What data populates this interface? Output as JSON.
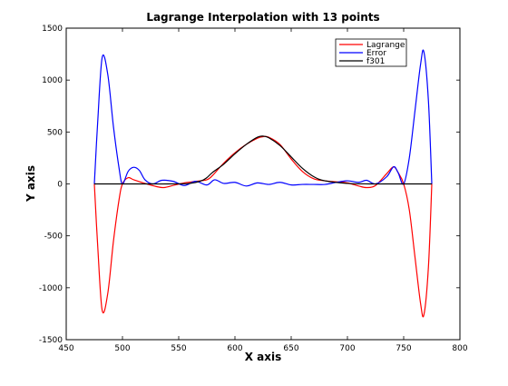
{
  "chart_data": {
    "type": "line",
    "title": "Lagrange Interpolation with 13 points",
    "xlabel": "X axis",
    "ylabel": "Y axis",
    "xlim": [
      450,
      800
    ],
    "ylim": [
      -1500,
      1500
    ],
    "xticks": [
      450,
      500,
      550,
      600,
      650,
      700,
      750,
      800
    ],
    "yticks": [
      -1500,
      -1000,
      -500,
      0,
      500,
      1000,
      1500
    ],
    "legend_position": "top-right",
    "grid": false,
    "series": [
      {
        "name": "Lagrange",
        "color": "#ff0000",
        "x": [
          475,
          478,
          482,
          487,
          492,
          497,
          500,
          505,
          510,
          520,
          530,
          537,
          545,
          555,
          565,
          575,
          580,
          590,
          600,
          610,
          620,
          625,
          630,
          640,
          650,
          660,
          670,
          680,
          690,
          700,
          710,
          717,
          725,
          735,
          741,
          745,
          750,
          755,
          760,
          765,
          768,
          772,
          775
        ],
        "y": [
          0,
          -600,
          -1220,
          -1050,
          -550,
          -150,
          0,
          60,
          40,
          5,
          -25,
          -35,
          -15,
          10,
          25,
          40,
          80,
          200,
          300,
          380,
          440,
          455,
          450,
          380,
          240,
          120,
          50,
          30,
          20,
          10,
          -20,
          -35,
          -15,
          100,
          165,
          110,
          0,
          -250,
          -700,
          -1150,
          -1260,
          -800,
          0
        ]
      },
      {
        "name": "Error",
        "color": "#0000ff",
        "x": [
          475,
          478,
          482,
          487,
          492,
          497,
          500,
          505,
          510,
          515,
          520,
          527,
          535,
          545,
          555,
          565,
          575,
          582,
          590,
          600,
          610,
          620,
          630,
          640,
          650,
          660,
          670,
          680,
          690,
          700,
          710,
          717,
          725,
          735,
          741,
          745,
          750,
          755,
          760,
          765,
          768,
          772,
          775
        ],
        "y": [
          0,
          600,
          1220,
          1050,
          550,
          150,
          0,
          120,
          160,
          130,
          40,
          0,
          35,
          25,
          -15,
          25,
          -10,
          40,
          5,
          15,
          -20,
          10,
          -5,
          15,
          -10,
          -5,
          -5,
          -5,
          15,
          30,
          15,
          35,
          0,
          70,
          165,
          110,
          0,
          250,
          700,
          1150,
          1270,
          800,
          0
        ]
      },
      {
        "name": "f301",
        "color": "#000000",
        "x": [
          475,
          500,
          520,
          540,
          560,
          570,
          575,
          580,
          590,
          600,
          610,
          620,
          625,
          630,
          640,
          650,
          660,
          670,
          680,
          700,
          720,
          740,
          760,
          775
        ],
        "y": [
          0,
          0,
          0,
          0,
          5,
          30,
          60,
          110,
          190,
          290,
          380,
          450,
          460,
          445,
          370,
          260,
          150,
          70,
          30,
          5,
          0,
          0,
          0,
          0
        ]
      }
    ]
  }
}
